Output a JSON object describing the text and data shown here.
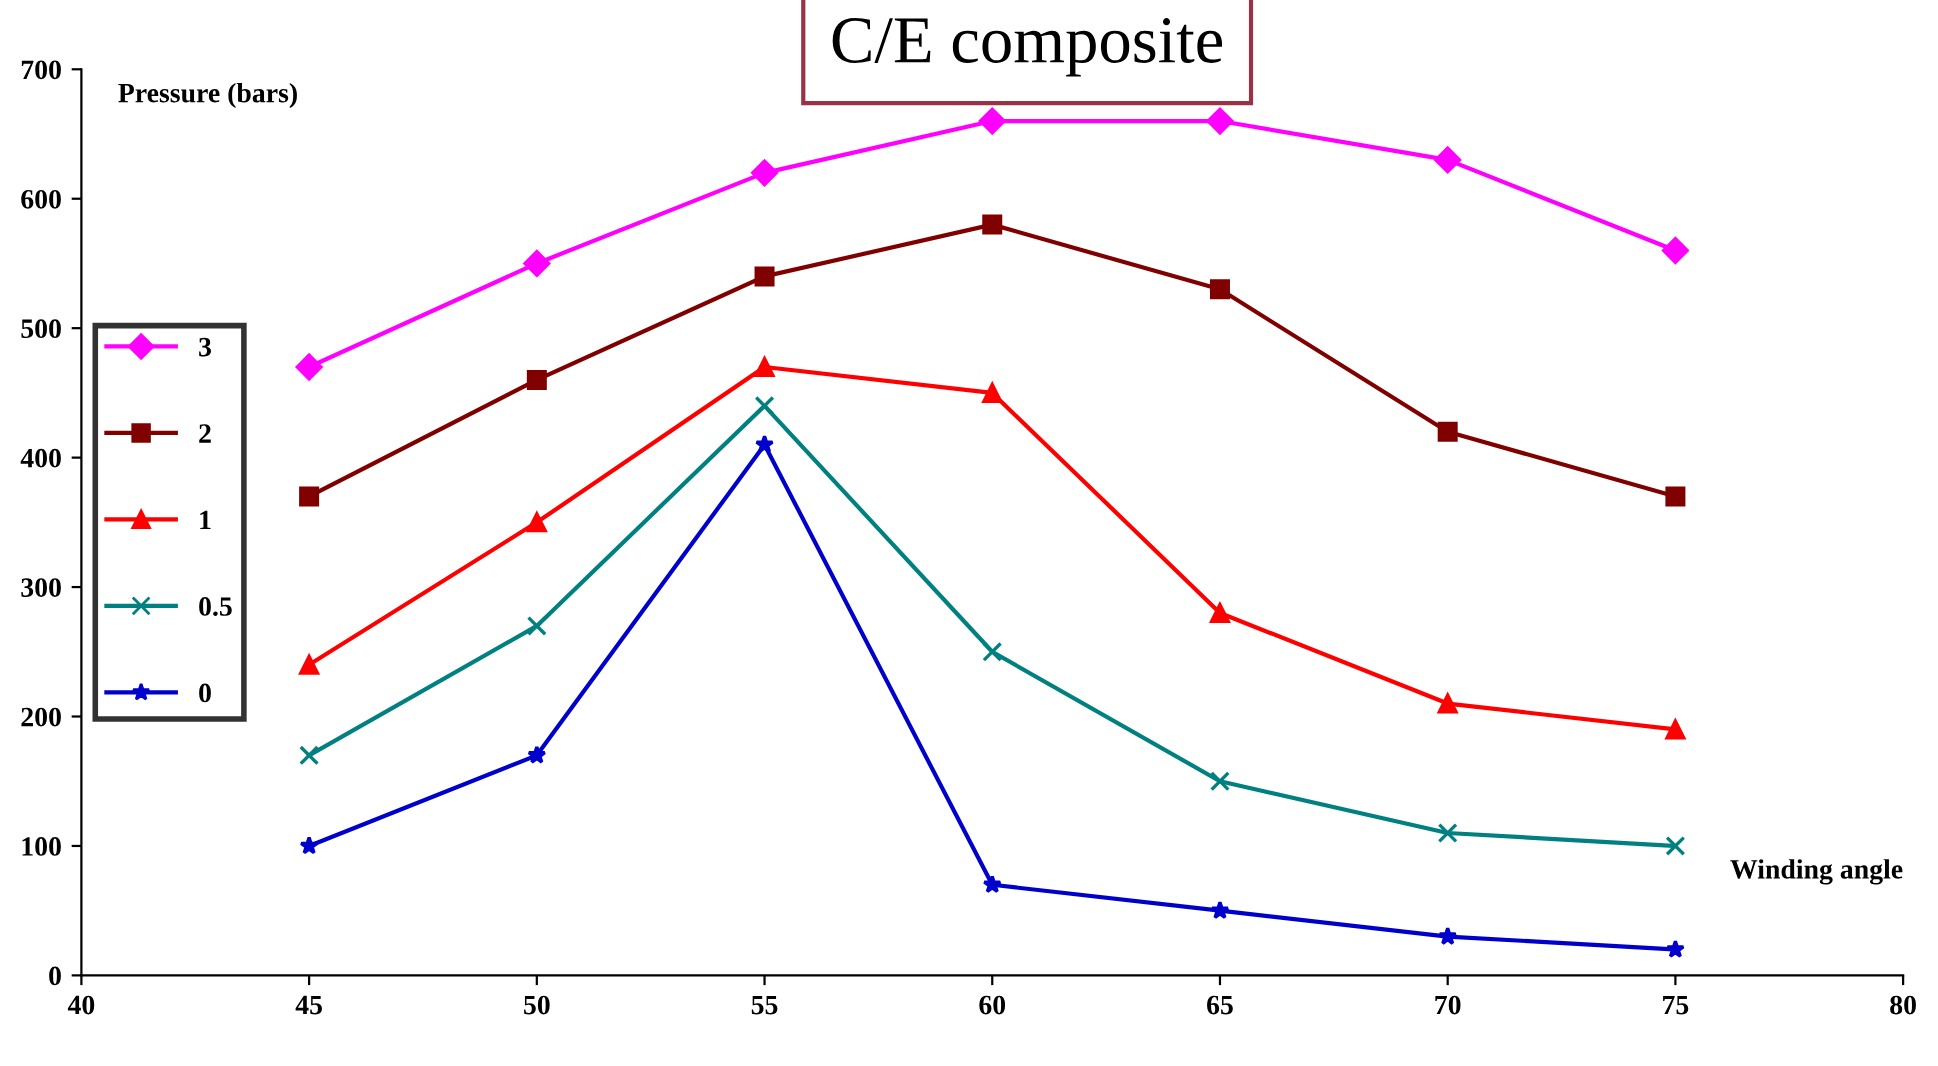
{
  "chart_data": {
    "type": "line",
    "title": "C/E composite",
    "ylabel": "Pressure (bars)",
    "xlabel": "Winding angle",
    "x": [
      45,
      50,
      55,
      60,
      65,
      70,
      75
    ],
    "series": [
      {
        "name": "3",
        "color": "#ff00ff",
        "marker": "diamond",
        "values": [
          470,
          550,
          620,
          660,
          660,
          630,
          560
        ]
      },
      {
        "name": "2",
        "color": "#800000",
        "marker": "square",
        "values": [
          370,
          460,
          540,
          580,
          530,
          420,
          370
        ]
      },
      {
        "name": "1",
        "color": "#ff0000",
        "marker": "triangle",
        "values": [
          240,
          350,
          470,
          450,
          280,
          210,
          190
        ]
      },
      {
        "name": "0.5",
        "color": "#008080",
        "marker": "cross",
        "values": [
          170,
          270,
          440,
          250,
          150,
          110,
          100
        ]
      },
      {
        "name": "0",
        "color": "#0000cc",
        "marker": "star",
        "values": [
          100,
          170,
          410,
          70,
          50,
          30,
          20
        ]
      }
    ],
    "xlim": [
      40,
      80
    ],
    "xticks": [
      40,
      45,
      50,
      55,
      60,
      65,
      70,
      75,
      80
    ],
    "ylim": [
      0,
      700
    ],
    "yticks": [
      0,
      100,
      200,
      300,
      400,
      500,
      600,
      700
    ],
    "grid": false,
    "legend": "left",
    "line_style": "solid"
  }
}
